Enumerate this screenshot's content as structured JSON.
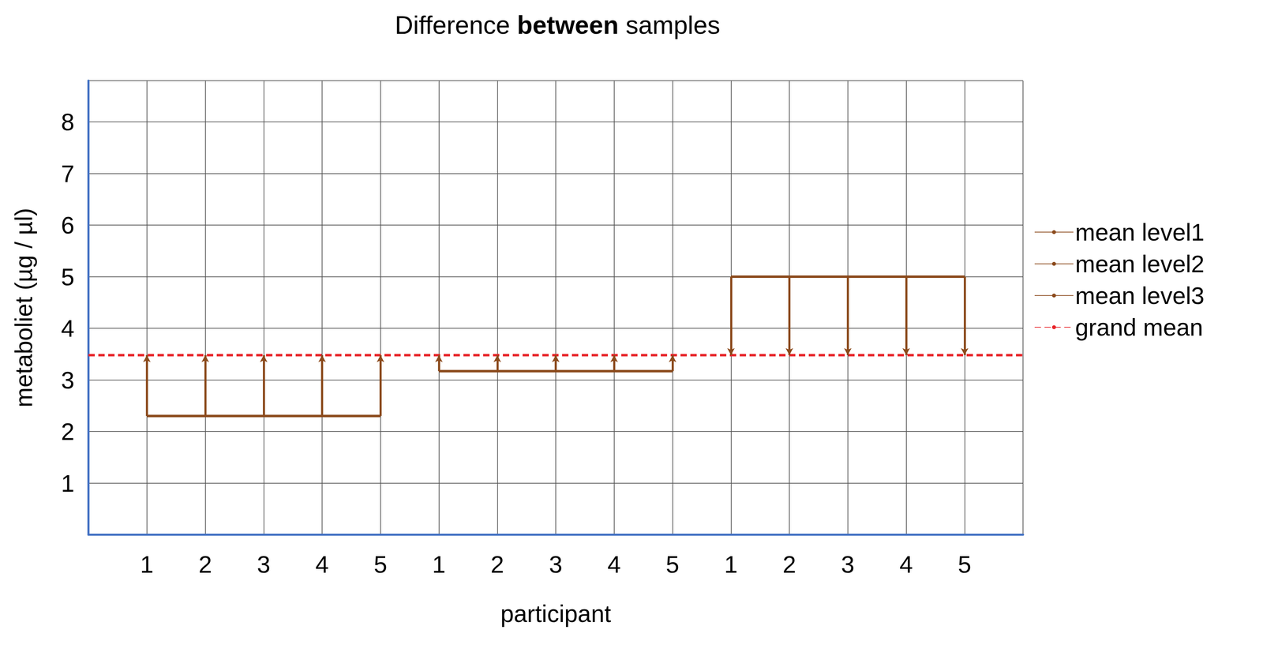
{
  "chart_data": {
    "type": "line",
    "title": "Difference between samples",
    "x_label": "participant",
    "y_label": "metaboliet (µg / µl)",
    "categories": [
      null,
      "1",
      "2",
      "3",
      "4",
      "5",
      "1",
      "2",
      "3",
      "4",
      "5",
      "1",
      "2",
      "3",
      "4",
      "5",
      null
    ],
    "series": [
      {
        "name": "mean level1",
        "color": "#8b4a1c",
        "line_style": "solid",
        "values": [
          null,
          2.3,
          2.3,
          2.3,
          2.3,
          2.3,
          null,
          null,
          null,
          null,
          null,
          null,
          null,
          null,
          null,
          null,
          null
        ]
      },
      {
        "name": "mean level2",
        "color": "#8b4a1c",
        "line_style": "solid",
        "values": [
          null,
          null,
          null,
          null,
          null,
          null,
          3.17,
          3.17,
          3.17,
          3.17,
          3.17,
          null,
          null,
          null,
          null,
          null,
          null
        ]
      },
      {
        "name": "mean level3",
        "color": "#8b4a1c",
        "line_style": "solid",
        "values": [
          null,
          null,
          null,
          null,
          null,
          null,
          null,
          null,
          null,
          null,
          null,
          5.0,
          5.0,
          5.0,
          5.0,
          5.0,
          null
        ]
      },
      {
        "name": "grand mean",
        "color": "#e8262b",
        "line_style": "dashed",
        "values": [
          3.48,
          3.48,
          3.48,
          3.48,
          3.48,
          3.48,
          3.48,
          3.48,
          3.48,
          3.48,
          3.48,
          3.48,
          3.48,
          3.48,
          3.48,
          3.48,
          3.48
        ]
      }
    ],
    "ylim": [
      0,
      8.8
    ],
    "yticks": [
      1,
      2,
      3,
      4,
      5,
      6,
      7,
      8
    ],
    "grid": true,
    "legend": "right"
  }
}
